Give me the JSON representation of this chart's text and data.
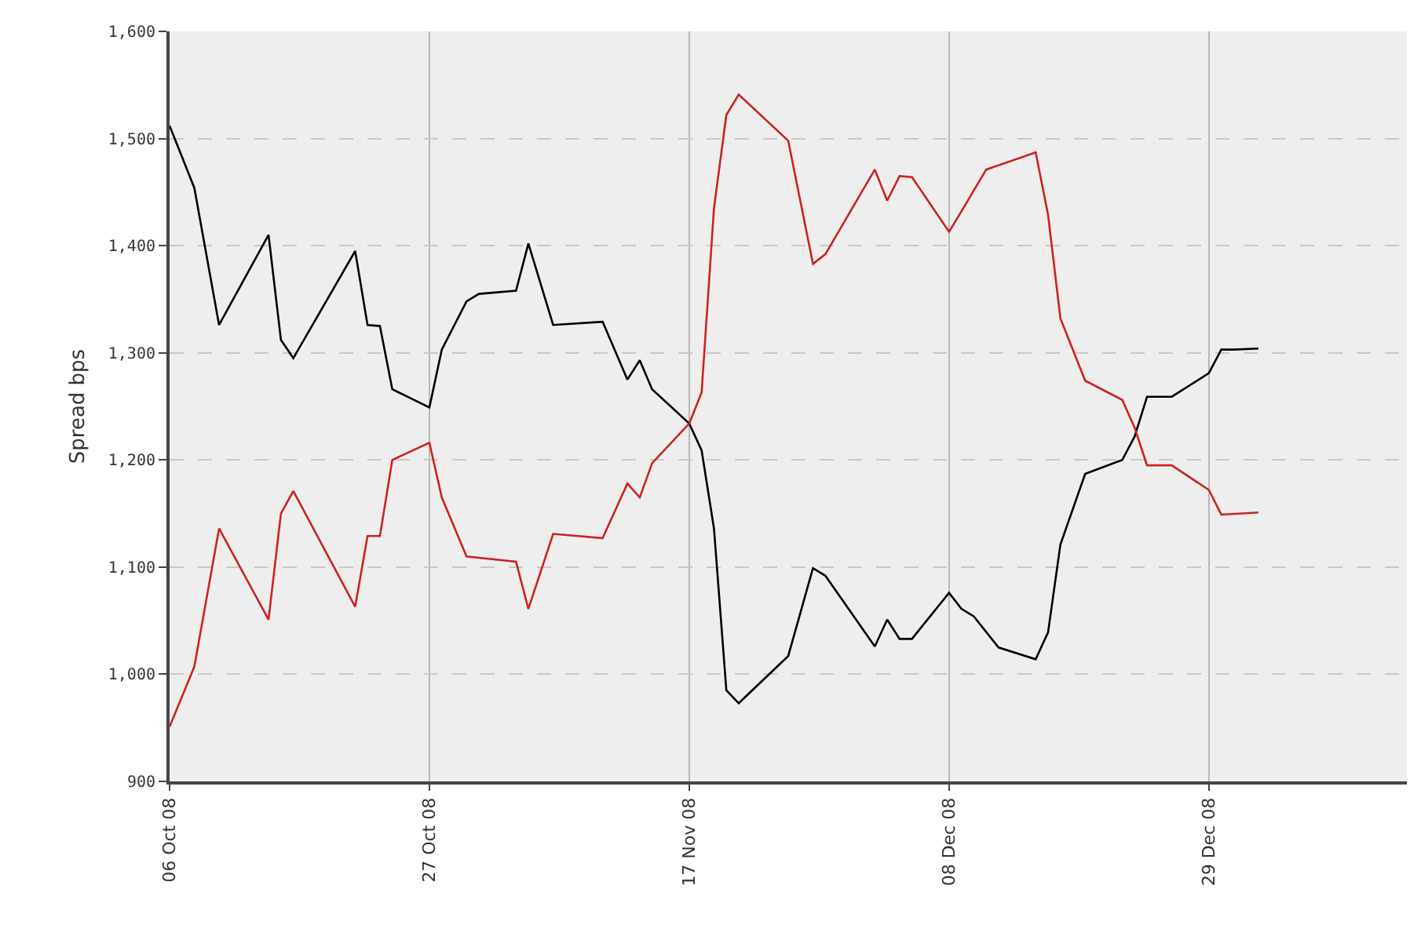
{
  "chart_data": {
    "type": "line",
    "ylabel": "Spread bps",
    "grid": true,
    "marker": "none",
    "line_style": "solid",
    "xlim": [
      "2008-10-06",
      "2009-01-14"
    ],
    "xticks": [
      {
        "value": "2008-10-06",
        "label": "06 Oct 08"
      },
      {
        "value": "2008-10-27",
        "label": "27 Oct 08"
      },
      {
        "value": "2008-11-17",
        "label": "17 Nov 08"
      },
      {
        "value": "2008-12-08",
        "label": "08 Dec 08"
      },
      {
        "value": "2008-12-29",
        "label": "29 Dec 08"
      }
    ],
    "ylim": [
      900,
      1600
    ],
    "yticks": [
      900,
      {
        "value": 1000,
        "label": "1,000"
      },
      {
        "value": 1100,
        "label": "1,100"
      },
      {
        "value": 1200,
        "label": "1,200"
      },
      {
        "value": 1300,
        "label": "1,300"
      },
      {
        "value": 1400,
        "label": "1,400"
      },
      {
        "value": 1500,
        "label": "1,500"
      },
      {
        "value": 1600,
        "label": "1,600"
      }
    ],
    "series": [
      {
        "color": "#000000",
        "x": [
          "2008-10-06",
          "2008-10-08",
          "2008-10-10",
          "2008-10-14",
          "2008-10-15",
          "2008-10-16",
          "2008-10-21",
          "2008-10-22",
          "2008-10-23",
          "2008-10-24",
          "2008-10-27",
          "2008-10-28",
          "2008-10-30",
          "2008-10-31",
          "2008-11-03",
          "2008-11-04",
          "2008-11-06",
          "2008-11-10",
          "2008-11-12",
          "2008-11-13",
          "2008-11-14",
          "2008-11-17",
          "2008-11-18",
          "2008-11-19",
          "2008-11-20",
          "2008-11-21",
          "2008-11-25",
          "2008-11-27",
          "2008-11-28",
          "2008-12-02",
          "2008-12-03",
          "2008-12-04",
          "2008-12-05",
          "2008-12-08",
          "2008-12-09",
          "2008-12-10",
          "2008-12-12",
          "2008-12-15",
          "2008-12-16",
          "2008-12-17",
          "2008-12-19",
          "2008-12-22",
          "2008-12-23",
          "2008-12-24",
          "2008-12-26",
          "2008-12-29",
          "2008-12-30",
          "2008-12-31",
          "2009-01-02"
        ],
        "values": [
          1512,
          1454,
          1326,
          1410,
          1312,
          1295,
          1395,
          1326,
          1325,
          1266,
          1249,
          1303,
          1348,
          1355,
          1358,
          1402,
          1326,
          1329,
          1275,
          1293,
          1266,
          1234,
          1209,
          1136,
          985,
          973,
          1017,
          1099,
          1092,
          1026,
          1051,
          1033,
          1033,
          1076,
          1061,
          1054,
          1025,
          1014,
          1039,
          1121,
          1187,
          1200,
          1222,
          1259,
          1259,
          1281,
          1303,
          1303,
          1304
        ]
      },
      {
        "color": "#cc2222",
        "x": [
          "2008-10-06",
          "2008-10-08",
          "2008-10-10",
          "2008-10-14",
          "2008-10-15",
          "2008-10-16",
          "2008-10-21",
          "2008-10-22",
          "2008-10-23",
          "2008-10-24",
          "2008-10-27",
          "2008-10-28",
          "2008-10-30",
          "2008-11-03",
          "2008-11-04",
          "2008-11-06",
          "2008-11-10",
          "2008-11-12",
          "2008-11-13",
          "2008-11-14",
          "2008-11-17",
          "2008-11-18",
          "2008-11-19",
          "2008-11-20",
          "2008-11-21",
          "2008-11-25",
          "2008-11-27",
          "2008-11-28",
          "2008-12-02",
          "2008-12-03",
          "2008-12-04",
          "2008-12-05",
          "2008-12-08",
          "2008-12-09",
          "2008-12-11",
          "2008-12-15",
          "2008-12-16",
          "2008-12-17",
          "2008-12-19",
          "2008-12-22",
          "2008-12-23",
          "2008-12-24",
          "2008-12-26",
          "2008-12-29",
          "2008-12-30",
          "2009-01-02"
        ],
        "values": [
          951,
          1007,
          1136,
          1051,
          1150,
          1171,
          1063,
          1129,
          1129,
          1200,
          1216,
          1165,
          1110,
          1105,
          1061,
          1131,
          1127,
          1178,
          1165,
          1197,
          1234,
          1263,
          1435,
          1522,
          1541,
          1498,
          1383,
          1392,
          1471,
          1442,
          1465,
          1464,
          1413,
          1432,
          1471,
          1487,
          1429,
          1332,
          1274,
          1256,
          1230,
          1195,
          1195,
          1172,
          1149,
          1151
        ]
      }
    ]
  }
}
